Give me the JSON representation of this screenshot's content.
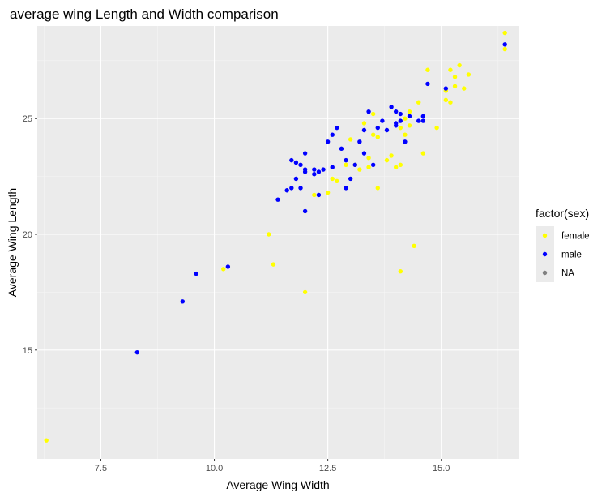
{
  "chart_data": {
    "type": "scatter",
    "title": "average wing Length and Width comparison",
    "xlabel": "Average Wing Width",
    "ylabel": "Average Wing Length",
    "xlim": [
      6.1,
      16.7
    ],
    "ylim": [
      10.3,
      29.0
    ],
    "x_ticks": [
      7.5,
      10.0,
      12.5,
      15.0
    ],
    "x_tick_labels": [
      "7.5",
      "10.0",
      "12.5",
      "15.0"
    ],
    "x_minor_ticks": [
      6.25,
      8.75,
      11.25,
      13.75,
      16.25
    ],
    "y_ticks": [
      15,
      20,
      25
    ],
    "y_tick_labels": [
      "15",
      "20",
      "25"
    ],
    "y_minor_ticks": [
      12.5,
      17.5,
      22.5,
      27.5
    ],
    "grid": true,
    "legend": {
      "title": "factor(sex)",
      "position": "right",
      "entries": [
        {
          "label": "female",
          "color": "#ffff00"
        },
        {
          "label": "male",
          "color": "#0000ff"
        },
        {
          "label": "NA",
          "color": "#808080"
        }
      ]
    },
    "series": [
      {
        "name": "female",
        "color": "#ffff00",
        "points": [
          [
            6.3,
            11.1
          ],
          [
            10.2,
            18.5
          ],
          [
            11.2,
            20.0
          ],
          [
            11.3,
            18.7
          ],
          [
            12.0,
            17.5
          ],
          [
            12.2,
            21.7
          ],
          [
            12.5,
            21.8
          ],
          [
            12.6,
            22.4
          ],
          [
            12.7,
            22.3
          ],
          [
            12.9,
            23.0
          ],
          [
            13.0,
            24.1
          ],
          [
            13.1,
            23.0
          ],
          [
            13.2,
            22.8
          ],
          [
            13.3,
            24.8
          ],
          [
            13.4,
            22.9
          ],
          [
            13.4,
            23.3
          ],
          [
            13.5,
            25.2
          ],
          [
            13.5,
            24.3
          ],
          [
            13.6,
            24.2
          ],
          [
            13.6,
            22.0
          ],
          [
            13.8,
            23.2
          ],
          [
            13.9,
            23.4
          ],
          [
            14.0,
            22.9
          ],
          [
            14.1,
            24.6
          ],
          [
            14.1,
            23.0
          ],
          [
            14.2,
            25.0
          ],
          [
            14.2,
            24.3
          ],
          [
            14.3,
            24.7
          ],
          [
            14.3,
            25.3
          ],
          [
            14.1,
            18.4
          ],
          [
            14.4,
            19.5
          ],
          [
            14.5,
            25.7
          ],
          [
            14.6,
            23.5
          ],
          [
            14.7,
            27.1
          ],
          [
            14.9,
            24.6
          ],
          [
            15.1,
            25.8
          ],
          [
            15.1,
            26.2
          ],
          [
            15.2,
            25.7
          ],
          [
            15.2,
            27.1
          ],
          [
            15.3,
            26.4
          ],
          [
            15.3,
            26.8
          ],
          [
            15.4,
            27.3
          ],
          [
            15.5,
            26.3
          ],
          [
            15.6,
            26.9
          ],
          [
            16.4,
            28.7
          ],
          [
            16.4,
            28.0
          ]
        ]
      },
      {
        "name": "male",
        "color": "#0000ff",
        "points": [
          [
            8.3,
            14.9
          ],
          [
            9.3,
            17.1
          ],
          [
            9.6,
            18.3
          ],
          [
            10.3,
            18.6
          ],
          [
            11.4,
            21.5
          ],
          [
            11.6,
            21.9
          ],
          [
            11.7,
            22.0
          ],
          [
            11.7,
            23.2
          ],
          [
            11.8,
            23.1
          ],
          [
            11.8,
            22.4
          ],
          [
            11.9,
            23.0
          ],
          [
            11.9,
            22.0
          ],
          [
            12.0,
            22.8
          ],
          [
            12.0,
            21.0
          ],
          [
            12.0,
            23.5
          ],
          [
            12.0,
            22.7
          ],
          [
            12.2,
            22.6
          ],
          [
            12.2,
            22.8
          ],
          [
            12.3,
            22.7
          ],
          [
            12.3,
            21.7
          ],
          [
            12.4,
            22.8
          ],
          [
            12.5,
            24.0
          ],
          [
            12.6,
            24.3
          ],
          [
            12.6,
            22.9
          ],
          [
            12.7,
            24.6
          ],
          [
            12.8,
            23.7
          ],
          [
            12.9,
            22.0
          ],
          [
            12.9,
            23.2
          ],
          [
            13.0,
            22.4
          ],
          [
            13.1,
            23.0
          ],
          [
            13.2,
            24.0
          ],
          [
            13.3,
            24.5
          ],
          [
            13.3,
            23.5
          ],
          [
            13.4,
            25.3
          ],
          [
            13.5,
            23.0
          ],
          [
            13.6,
            24.6
          ],
          [
            13.7,
            24.9
          ],
          [
            13.8,
            24.5
          ],
          [
            13.9,
            25.5
          ],
          [
            14.0,
            24.8
          ],
          [
            14.0,
            25.3
          ],
          [
            14.0,
            24.7
          ],
          [
            14.1,
            25.2
          ],
          [
            14.1,
            24.9
          ],
          [
            14.2,
            24.0
          ],
          [
            14.3,
            25.1
          ],
          [
            14.5,
            24.9
          ],
          [
            14.6,
            25.1
          ],
          [
            14.6,
            24.9
          ],
          [
            14.7,
            26.5
          ],
          [
            15.1,
            26.3
          ],
          [
            16.4,
            28.2
          ]
        ]
      }
    ]
  }
}
